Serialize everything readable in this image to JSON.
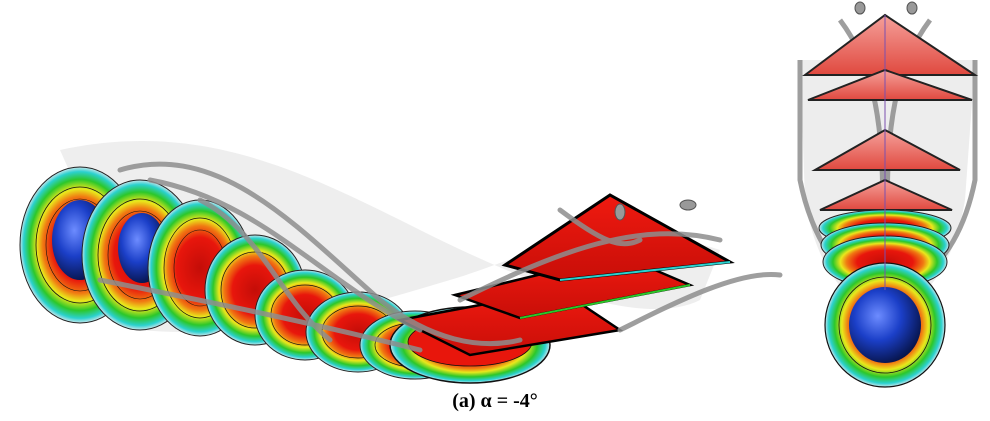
{
  "figure": {
    "caption": "(a) α = -4°",
    "palette": {
      "core": "#e8160c",
      "core_dark": "#b80c06",
      "mid_orange": "#f59a18",
      "yellow": "#e9e81c",
      "green": "#2cc72a",
      "cyan": "#2bd1cf",
      "blue_sphere": "#1b3fc8",
      "sheet_gray": "#9a9a9a"
    }
  }
}
